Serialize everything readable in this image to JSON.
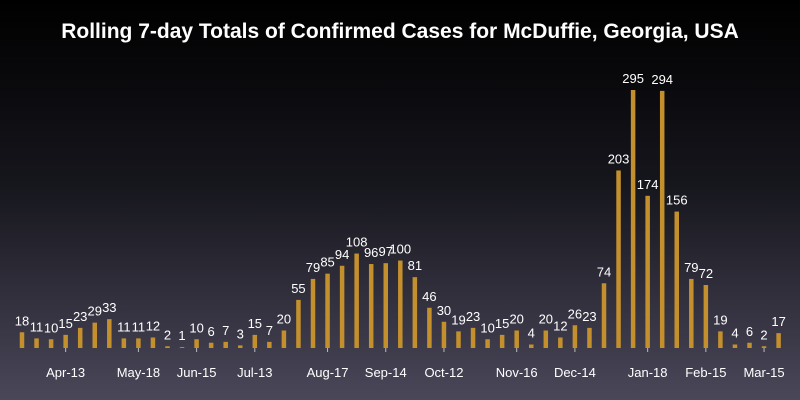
{
  "chart_data": {
    "type": "bar",
    "title": "Rolling 7-day Totals of Confirmed Cases for McDuffie, Georgia, USA",
    "xlabel": "",
    "ylabel": "",
    "ylim": [
      0,
      295
    ],
    "grid": false,
    "legend": "none",
    "bar_color": "#c4902e",
    "x_tick_labels": [
      "Apr-13",
      "May-18",
      "Jun-15",
      "Jul-13",
      "Aug-17",
      "Sep-14",
      "Oct-12",
      "Nov-16",
      "Dec-14",
      "Jan-18",
      "Feb-15",
      "Mar-15"
    ],
    "x_tick_positions": [
      3,
      8,
      12,
      16,
      21,
      25,
      29,
      34,
      38,
      43,
      47,
      51
    ],
    "values": [
      18,
      11,
      10,
      15,
      23,
      29,
      33,
      11,
      11,
      12,
      2,
      1,
      10,
      6,
      7,
      3,
      15,
      7,
      20,
      55,
      79,
      85,
      94,
      108,
      96,
      97,
      100,
      81,
      46,
      30,
      19,
      23,
      10,
      15,
      20,
      4,
      20,
      12,
      26,
      23,
      74,
      203,
      295,
      174,
      294,
      156,
      79,
      72,
      19,
      4,
      6,
      2,
      17
    ]
  }
}
